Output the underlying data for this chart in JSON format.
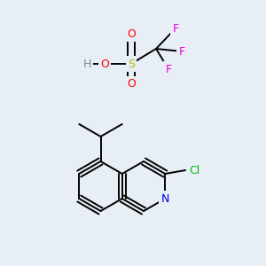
{
  "background_color": "#e8eef5",
  "atom_colors": {
    "H": "#7a8a8a",
    "O": "#ff0000",
    "S": "#b8b800",
    "F": "#e000e0",
    "N": "#0000ee",
    "Cl": "#00bb00"
  },
  "figsize": [
    3.0,
    3.0
  ],
  "dpi": 100
}
